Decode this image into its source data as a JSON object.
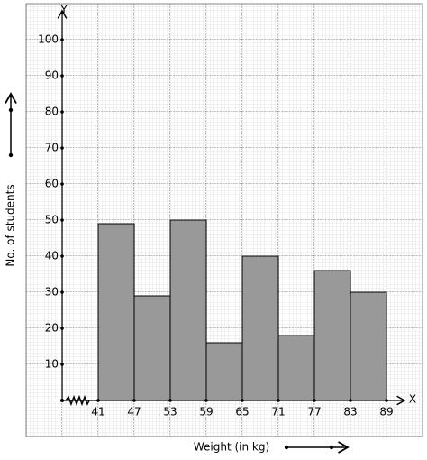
{
  "chart_data": {
    "type": "histogram",
    "x_label": "Weight (in kg)",
    "y_label": "No. of students",
    "x_axis_name": "X",
    "y_axis_name": "Y",
    "bins": [
      41,
      47,
      53,
      59,
      65,
      71,
      77,
      83,
      89
    ],
    "values": [
      49,
      29,
      50,
      16,
      40,
      18,
      36,
      30
    ],
    "color": "#999999",
    "xlim": [
      35,
      92
    ],
    "xticks": [
      41,
      47,
      53,
      59,
      65,
      71,
      77,
      83,
      89
    ],
    "ylim": [
      0,
      108
    ],
    "yticks": [
      10,
      20,
      30,
      40,
      50,
      60,
      70,
      80,
      90,
      100
    ],
    "grid": true
  }
}
